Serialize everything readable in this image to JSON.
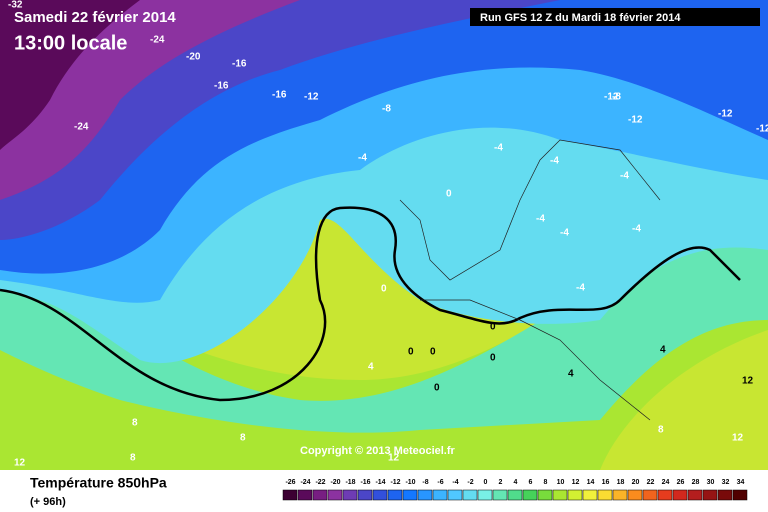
{
  "header": {
    "date": "Samedi 22 février 2014",
    "time": "13:00 locale",
    "run": "Run GFS 12 Z du Mardi 18 février 2014"
  },
  "footer": {
    "title": "Température 850hPa",
    "lead": "(+ 96h)"
  },
  "copyright": "Copyright © 2013 Meteociel.fr",
  "contour_labels": [
    -32,
    -24,
    -20,
    -16,
    -16,
    -16,
    -12,
    -24,
    -8,
    -12,
    -8,
    -12,
    -12,
    -12,
    -4,
    -4,
    -4,
    -4,
    -4,
    -4,
    -4,
    -4,
    0,
    0,
    0,
    0,
    0,
    0,
    0,
    4,
    4,
    4,
    8,
    8,
    8,
    8,
    12,
    12,
    12,
    12
  ],
  "scale": {
    "labels": [
      -26,
      -24,
      -22,
      -20,
      -18,
      -16,
      -14,
      -12,
      -10,
      -8,
      -6,
      -4,
      -2,
      0,
      2,
      4,
      6,
      8,
      10,
      12,
      14,
      16,
      18,
      20,
      22,
      24,
      26,
      28,
      30,
      32,
      34
    ],
    "colors": [
      "#3c0032",
      "#5a0a5a",
      "#781e82",
      "#8c32a0",
      "#6e3cb4",
      "#4b46c8",
      "#3250dc",
      "#1e64f0",
      "#1478ff",
      "#2896ff",
      "#3cb4ff",
      "#50c8ff",
      "#64dcf0",
      "#78f0e6",
      "#64e6b4",
      "#50dc8c",
      "#46d25a",
      "#78dc3c",
      "#aae632",
      "#d2f032",
      "#f0f03c",
      "#fadc32",
      "#fab428",
      "#fa8c1e",
      "#f0641e",
      "#e63c1e",
      "#d2281e",
      "#b41e1e",
      "#961414",
      "#780a0a",
      "#500000"
    ]
  }
}
